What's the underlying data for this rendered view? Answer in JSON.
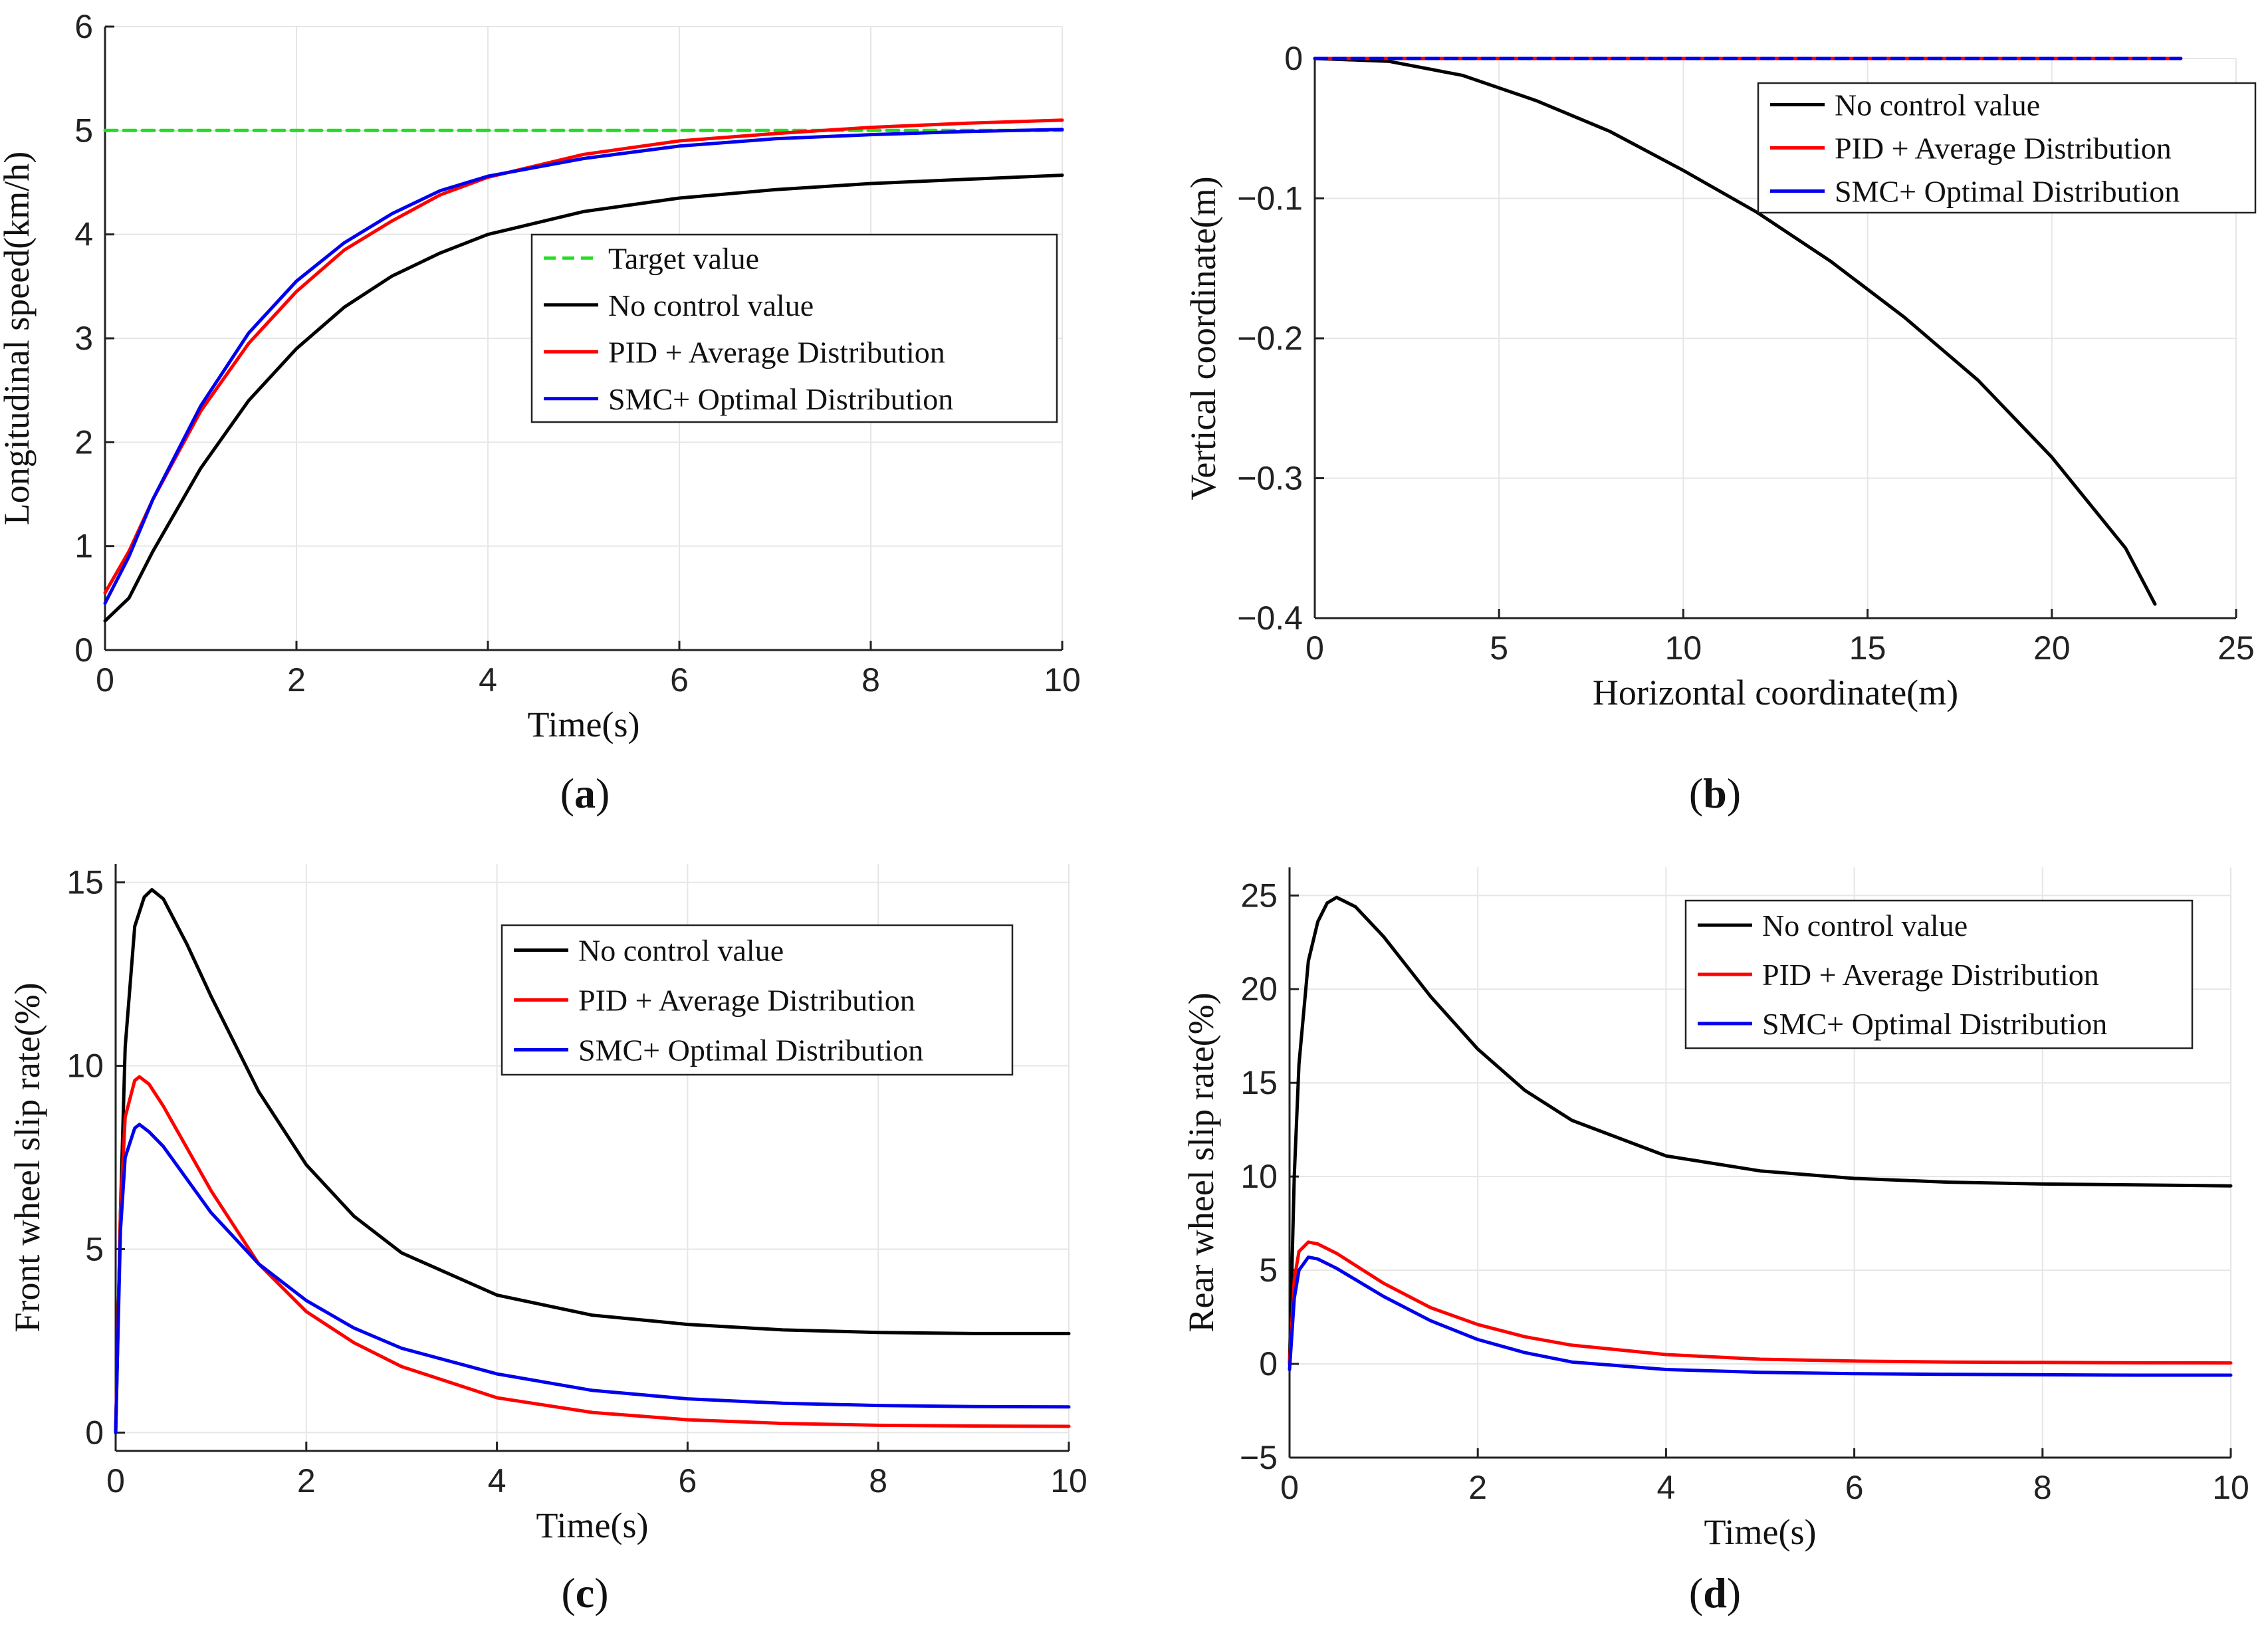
{
  "chart_data": [
    {
      "id": "a",
      "type": "line",
      "panel_label": "a",
      "xlabel": "Time(s)",
      "ylabel": "Longitudinal speed(km/h)",
      "xlim": [
        0,
        10
      ],
      "ylim": [
        0,
        6
      ],
      "xticks": [
        0,
        2,
        4,
        6,
        8,
        10
      ],
      "yticks": [
        0,
        1,
        2,
        3,
        4,
        5,
        6
      ],
      "grid": true,
      "legend_position": "center-right",
      "series": [
        {
          "name": "Target value",
          "color": "#22dd22",
          "dashed": true,
          "x": [
            0,
            10
          ],
          "y": [
            5,
            5
          ]
        },
        {
          "name": "No control value",
          "color": "#000000",
          "x": [
            0,
            0.25,
            0.5,
            1,
            1.5,
            2,
            2.5,
            3,
            3.5,
            4,
            5,
            6,
            7,
            8,
            9,
            10
          ],
          "y": [
            0.28,
            0.5,
            0.95,
            1.75,
            2.4,
            2.9,
            3.3,
            3.6,
            3.82,
            4.0,
            4.22,
            4.35,
            4.43,
            4.49,
            4.53,
            4.57
          ]
        },
        {
          "name": "PID + Average Distribution",
          "color": "#ff0000",
          "x": [
            0,
            0.25,
            0.5,
            1,
            1.5,
            2,
            2.5,
            3,
            3.5,
            4,
            5,
            6,
            7,
            8,
            9,
            10
          ],
          "y": [
            0.55,
            0.95,
            1.45,
            2.3,
            2.95,
            3.45,
            3.85,
            4.13,
            4.38,
            4.55,
            4.77,
            4.9,
            4.97,
            5.03,
            5.07,
            5.1
          ]
        },
        {
          "name": "SMC+ Optimal Distribution",
          "color": "#0000ee",
          "x": [
            0,
            0.25,
            0.5,
            1,
            1.5,
            2,
            2.5,
            3,
            3.5,
            4,
            5,
            6,
            7,
            8,
            9,
            10
          ],
          "y": [
            0.45,
            0.9,
            1.45,
            2.35,
            3.05,
            3.55,
            3.92,
            4.2,
            4.42,
            4.56,
            4.73,
            4.85,
            4.92,
            4.96,
            4.99,
            5.01
          ]
        }
      ]
    },
    {
      "id": "b",
      "type": "line",
      "panel_label": "b",
      "xlabel": "Horizontal coordinate(m)",
      "ylabel": "Vertical coordinate(m)",
      "xlim": [
        0,
        25
      ],
      "ylim": [
        -0.4,
        0
      ],
      "xticks": [
        0,
        5,
        10,
        15,
        20,
        25
      ],
      "yticks": [
        0,
        -0.1,
        -0.2,
        -0.3,
        -0.4
      ],
      "grid": true,
      "legend_position": "top-right",
      "series": [
        {
          "name": "No control value",
          "color": "#000000",
          "x": [
            0,
            2,
            4,
            6,
            8,
            10,
            12,
            14,
            16,
            18,
            20,
            22,
            22.8
          ],
          "y": [
            0,
            -0.002,
            -0.012,
            -0.03,
            -0.052,
            -0.08,
            -0.11,
            -0.145,
            -0.185,
            -0.23,
            -0.285,
            -0.35,
            -0.39
          ]
        },
        {
          "name": "PID + Average Distribution",
          "color": "#ff0000",
          "x": [
            0,
            23.5
          ],
          "y": [
            0,
            0
          ]
        },
        {
          "name": "SMC+ Optimal Distribution",
          "color": "#0000ee",
          "dashed": true,
          "x": [
            0,
            23.5
          ],
          "y": [
            0,
            0
          ]
        }
      ]
    },
    {
      "id": "c",
      "type": "line",
      "panel_label": "c",
      "xlabel": "Time(s)",
      "ylabel": "Front wheel slip rate(%)",
      "xlim": [
        0,
        10
      ],
      "ylim": [
        -0.5,
        15.5
      ],
      "xticks": [
        0,
        2,
        4,
        6,
        8,
        10
      ],
      "yticks": [
        0,
        5,
        10,
        15
      ],
      "grid": true,
      "legend_position": "top-right",
      "series": [
        {
          "name": "No control value",
          "color": "#000000",
          "x": [
            0,
            0.05,
            0.1,
            0.2,
            0.3,
            0.38,
            0.5,
            0.75,
            1,
            1.5,
            2,
            2.5,
            3,
            4,
            5,
            6,
            7,
            8,
            9,
            10
          ],
          "y": [
            0,
            6,
            10.5,
            13.8,
            14.6,
            14.8,
            14.55,
            13.3,
            11.9,
            9.3,
            7.3,
            5.9,
            4.9,
            3.75,
            3.2,
            2.95,
            2.8,
            2.73,
            2.7,
            2.7
          ]
        },
        {
          "name": "PID + Average Distribution",
          "color": "#ff0000",
          "x": [
            0,
            0.05,
            0.1,
            0.2,
            0.25,
            0.35,
            0.5,
            1,
            1.5,
            2,
            2.5,
            3,
            4,
            5,
            6,
            7,
            8,
            9,
            10
          ],
          "y": [
            0,
            6,
            8.6,
            9.6,
            9.7,
            9.5,
            8.9,
            6.6,
            4.6,
            3.3,
            2.45,
            1.8,
            0.95,
            0.55,
            0.35,
            0.25,
            0.2,
            0.18,
            0.17
          ]
        },
        {
          "name": "SMC+ Optimal Distribution",
          "color": "#0000ee",
          "x": [
            0,
            0.05,
            0.1,
            0.2,
            0.25,
            0.35,
            0.5,
            1,
            1.5,
            2,
            2.5,
            3,
            4,
            5,
            6,
            7,
            8,
            9,
            10
          ],
          "y": [
            0,
            5.5,
            7.5,
            8.3,
            8.4,
            8.2,
            7.8,
            6.0,
            4.6,
            3.6,
            2.85,
            2.3,
            1.6,
            1.15,
            0.92,
            0.8,
            0.74,
            0.71,
            0.7
          ]
        }
      ]
    },
    {
      "id": "d",
      "type": "line",
      "panel_label": "d",
      "xlabel": "Time(s)",
      "ylabel": "Rear wheel slip rate(%)",
      "xlim": [
        0,
        10
      ],
      "ylim": [
        -5,
        26.5
      ],
      "xticks": [
        0,
        2,
        4,
        6,
        8,
        10
      ],
      "yticks": [
        -5,
        0,
        5,
        10,
        15,
        20,
        25
      ],
      "grid": true,
      "legend_position": "top-right",
      "series": [
        {
          "name": "No control value",
          "color": "#000000",
          "x": [
            0,
            0.05,
            0.1,
            0.2,
            0.3,
            0.4,
            0.5,
            0.7,
            1,
            1.5,
            2,
            2.5,
            3,
            4,
            5,
            6,
            7,
            8,
            9,
            10
          ],
          "y": [
            0,
            10,
            16,
            21.5,
            23.6,
            24.6,
            24.9,
            24.4,
            22.8,
            19.6,
            16.8,
            14.6,
            13.0,
            11.1,
            10.3,
            9.9,
            9.7,
            9.6,
            9.55,
            9.5
          ]
        },
        {
          "name": "PID + Average Distribution",
          "color": "#ff0000",
          "x": [
            0,
            0.05,
            0.1,
            0.2,
            0.3,
            0.5,
            1,
            1.5,
            2,
            2.5,
            3,
            4,
            5,
            6,
            7,
            8,
            9,
            10
          ],
          "y": [
            0,
            4.5,
            6.0,
            6.5,
            6.4,
            5.9,
            4.3,
            3.0,
            2.1,
            1.45,
            1.0,
            0.5,
            0.25,
            0.15,
            0.1,
            0.08,
            0.06,
            0.05
          ]
        },
        {
          "name": "SMC+ Optimal Distribution",
          "color": "#0000ee",
          "x": [
            0,
            0.05,
            0.1,
            0.2,
            0.3,
            0.5,
            1,
            1.5,
            2,
            2.5,
            3,
            4,
            5,
            6,
            7,
            8,
            9,
            10
          ],
          "y": [
            -0.3,
            3.5,
            5.0,
            5.7,
            5.6,
            5.1,
            3.6,
            2.3,
            1.3,
            0.6,
            0.1,
            -0.3,
            -0.45,
            -0.52,
            -0.56,
            -0.58,
            -0.6,
            -0.6
          ]
        }
      ]
    }
  ]
}
